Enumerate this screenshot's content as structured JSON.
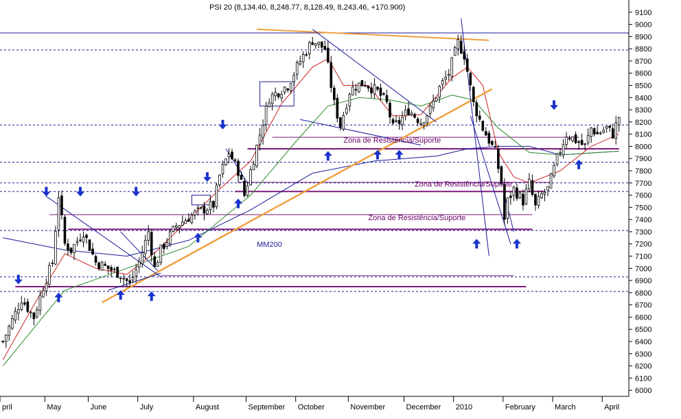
{
  "chart_data": {
    "type": "candlestick",
    "title": "PSI 20 (8,134.40, 8,248.77, 8,128.49, 8,243.46, +170.900)",
    "ylim": [
      5950,
      9200
    ],
    "y_ticks": [
      6000,
      6100,
      6200,
      6300,
      6400,
      6500,
      6600,
      6700,
      6800,
      6900,
      7000,
      7100,
      7200,
      7300,
      7400,
      7500,
      7600,
      7700,
      7800,
      7900,
      8000,
      8100,
      8200,
      8300,
      8400,
      8500,
      8600,
      8700,
      8800,
      8900,
      9000,
      9100
    ],
    "x_labels": [
      "pril",
      "May",
      "June",
      "July",
      "August",
      "September",
      "October",
      "November",
      "December",
      "2010",
      "February",
      "March",
      "April"
    ],
    "x_label_index": [
      0,
      14,
      28,
      44,
      62,
      79,
      95,
      112,
      130,
      146,
      162,
      178,
      194
    ],
    "n_bars": 200,
    "price_path": [
      [
        0,
        6400
      ],
      [
        6,
        6750
      ],
      [
        10,
        6600
      ],
      [
        13,
        6850
      ],
      [
        16,
        7050
      ],
      [
        18,
        7600
      ],
      [
        20,
        7200
      ],
      [
        22,
        7150
      ],
      [
        26,
        7300
      ],
      [
        30,
        7050
      ],
      [
        34,
        7000
      ],
      [
        38,
        6950
      ],
      [
        41,
        6870
      ],
      [
        44,
        7050
      ],
      [
        47,
        7300
      ],
      [
        49,
        7000
      ],
      [
        51,
        7150
      ],
      [
        56,
        7350
      ],
      [
        62,
        7450
      ],
      [
        68,
        7520
      ],
      [
        70,
        7760
      ],
      [
        73,
        7950
      ],
      [
        76,
        7800
      ],
      [
        78,
        7600
      ],
      [
        80,
        7800
      ],
      [
        83,
        8100
      ],
      [
        86,
        8400
      ],
      [
        89,
        8450
      ],
      [
        92,
        8500
      ],
      [
        96,
        8700
      ],
      [
        100,
        8870
      ],
      [
        104,
        8800
      ],
      [
        107,
        8350
      ],
      [
        109,
        8170
      ],
      [
        112,
        8450
      ],
      [
        114,
        8500
      ],
      [
        117,
        8520
      ],
      [
        119,
        8480
      ],
      [
        121,
        8450
      ],
      [
        124,
        8350
      ],
      [
        126,
        8150
      ],
      [
        128,
        8200
      ],
      [
        131,
        8300
      ],
      [
        133,
        8250
      ],
      [
        135,
        8200
      ],
      [
        138,
        8300
      ],
      [
        141,
        8480
      ],
      [
        144,
        8600
      ],
      [
        147,
        8850
      ],
      [
        149,
        8750
      ],
      [
        152,
        8350
      ],
      [
        155,
        8150
      ],
      [
        157,
        8050
      ],
      [
        159,
        7950
      ],
      [
        161,
        7700
      ],
      [
        162,
        7400
      ],
      [
        163,
        7550
      ],
      [
        165,
        7650
      ],
      [
        168,
        7550
      ],
      [
        170,
        7700
      ],
      [
        172,
        7500
      ],
      [
        174,
        7600
      ],
      [
        176,
        7650
      ],
      [
        179,
        7900
      ],
      [
        182,
        8100
      ],
      [
        185,
        8050
      ],
      [
        188,
        8000
      ],
      [
        190,
        8150
      ],
      [
        192,
        8100
      ],
      [
        195,
        8150
      ],
      [
        197,
        8100
      ],
      [
        199,
        8243
      ]
    ],
    "series": [
      {
        "name": "MM200",
        "color": "#1a1a9a",
        "points": [
          [
            0,
            7250
          ],
          [
            20,
            7150
          ],
          [
            40,
            7100
          ],
          [
            60,
            7230
          ],
          [
            80,
            7480
          ],
          [
            100,
            7780
          ],
          [
            120,
            7880
          ],
          [
            140,
            7920
          ],
          [
            150,
            7980
          ],
          [
            160,
            8000
          ],
          [
            170,
            8000
          ],
          [
            180,
            7930
          ],
          [
            199,
            7960
          ]
        ]
      },
      {
        "color": "#2a8a2a",
        "points": [
          [
            0,
            6200
          ],
          [
            20,
            6820
          ],
          [
            40,
            7000
          ],
          [
            60,
            7180
          ],
          [
            80,
            7600
          ],
          [
            95,
            8050
          ],
          [
            105,
            8330
          ],
          [
            115,
            8400
          ],
          [
            125,
            8380
          ],
          [
            135,
            8330
          ],
          [
            145,
            8420
          ],
          [
            152,
            8380
          ],
          [
            160,
            8150
          ],
          [
            170,
            7950
          ],
          [
            180,
            7930
          ],
          [
            199,
            7960
          ]
        ]
      },
      {
        "color": "#cc2222",
        "points": [
          [
            0,
            6250
          ],
          [
            10,
            6700
          ],
          [
            20,
            7120
          ],
          [
            30,
            7000
          ],
          [
            40,
            6950
          ],
          [
            50,
            7150
          ],
          [
            60,
            7400
          ],
          [
            70,
            7650
          ],
          [
            80,
            7880
          ],
          [
            90,
            8350
          ],
          [
            100,
            8650
          ],
          [
            105,
            8720
          ],
          [
            110,
            8500
          ],
          [
            118,
            8500
          ],
          [
            126,
            8250
          ],
          [
            135,
            8260
          ],
          [
            145,
            8560
          ],
          [
            150,
            8650
          ],
          [
            155,
            8500
          ],
          [
            160,
            7950
          ],
          [
            165,
            7750
          ],
          [
            170,
            7700
          ],
          [
            180,
            7800
          ],
          [
            190,
            8000
          ],
          [
            199,
            8100
          ]
        ]
      }
    ],
    "horizontal_levels": [
      {
        "value": 8930,
        "style": "solid",
        "color": "#1a1a9a"
      },
      {
        "value": 8790,
        "style": "dashed",
        "color": "#1a1a9a"
      },
      {
        "value": 8175,
        "style": "dashed",
        "color": "#1a1a9a"
      },
      {
        "value": 8075,
        "style": "solid",
        "color": "#7a1a7a",
        "x": [
          87,
          186
        ]
      },
      {
        "value": 7980,
        "style": "solid",
        "color": "#7a1a7a",
        "x": [
          79,
          199
        ],
        "width": 2
      },
      {
        "value": 7870,
        "style": "dashed",
        "color": "#1a1a9a"
      },
      {
        "value": 7700,
        "style": "dashed",
        "color": "#1a1a9a"
      },
      {
        "value": 7705,
        "style": "solid",
        "color": "#7a1a7a",
        "x": [
          76,
          177
        ]
      },
      {
        "value": 7630,
        "style": "dashed",
        "color": "#1a1a9a"
      },
      {
        "value": 7630,
        "style": "solid",
        "color": "#7a1a7a",
        "x": [
          75,
          175
        ],
        "width": 2
      },
      {
        "value": 7440,
        "style": "solid",
        "color": "#7a1a7a",
        "x": [
          15,
          171
        ]
      },
      {
        "value": 7320,
        "style": "solid",
        "color": "#7a1a7a",
        "x": [
          21,
          171
        ],
        "width": 2
      },
      {
        "value": 7310,
        "style": "dashed",
        "color": "#1a1a9a"
      },
      {
        "value": 6940,
        "style": "solid",
        "color": "#7a1a7a",
        "x": [
          51,
          165
        ]
      },
      {
        "value": 6930,
        "style": "dashed",
        "color": "#1a1a9a"
      },
      {
        "value": 6850,
        "style": "solid",
        "color": "#7a1a7a",
        "x": [
          4,
          169
        ],
        "width": 2
      },
      {
        "value": 6810,
        "style": "dashed",
        "color": "#1a1a9a"
      }
    ],
    "trendlines": [
      {
        "color": "#f0a040",
        "width": 2.5,
        "points": [
          [
            32,
            6720
          ],
          [
            158,
            8470
          ]
        ]
      },
      {
        "color": "#f0a040",
        "width": 2,
        "points": [
          [
            82,
            8960
          ],
          [
            157,
            8870
          ]
        ]
      },
      {
        "color": "#1a1a9a",
        "width": 1,
        "points": [
          [
            100,
            8960
          ],
          [
            140,
            8200
          ]
        ]
      },
      {
        "color": "#1a1a9a",
        "width": 1,
        "points": [
          [
            96,
            8220
          ],
          [
            135,
            8010
          ]
        ]
      },
      {
        "color": "#1a1a9a",
        "width": 1,
        "points": [
          [
            14,
            7590
          ],
          [
            51,
            6930
          ]
        ]
      },
      {
        "color": "#1a1a9a",
        "width": 1,
        "points": [
          [
            38,
            7300
          ],
          [
            50,
            6980
          ]
        ]
      },
      {
        "color": "#1a1a9a",
        "width": 1,
        "points": [
          [
            72,
            7980
          ],
          [
            79,
            7700
          ]
        ]
      },
      {
        "color": "#1a1a9a",
        "width": 1,
        "points": [
          [
            34,
            6820
          ],
          [
            51,
            6960
          ]
        ]
      },
      {
        "color": "#1a1a9a",
        "width": 1,
        "points": [
          [
            148,
            9050
          ],
          [
            157,
            7100
          ]
        ]
      },
      {
        "color": "#1a1a9a",
        "width": 1,
        "points": [
          [
            151,
            8250
          ],
          [
            164,
            7200
          ]
        ]
      },
      {
        "color": "#1a1a9a",
        "width": 1,
        "points": [
          [
            162,
            7600
          ],
          [
            165,
            7300
          ]
        ]
      }
    ],
    "boxes": [
      {
        "color": "#1a1a9a",
        "x": [
          83,
          94
        ],
        "y": [
          8330,
          8530
        ]
      },
      {
        "color": "#1a1a9a",
        "x": [
          61,
          67
        ],
        "y": [
          7520,
          7600
        ]
      }
    ],
    "arrows_down": [
      [
        5,
        6880
      ],
      [
        14,
        7600
      ],
      [
        25,
        7600
      ],
      [
        43,
        7600
      ],
      [
        71,
        8150
      ],
      [
        66,
        7720
      ],
      [
        178,
        8310
      ]
    ],
    "arrows_up": [
      [
        18,
        6790
      ],
      [
        38,
        6810
      ],
      [
        48,
        6800
      ],
      [
        63,
        7280
      ],
      [
        76,
        7560
      ],
      [
        105,
        7950
      ],
      [
        121,
        7960
      ],
      [
        128,
        7960
      ],
      [
        153,
        7230
      ],
      [
        166,
        7230
      ],
      [
        186,
        7880
      ]
    ],
    "annotations": [
      {
        "text": "Zona de Resistência/Suporte",
        "x": 110,
        "y": 8030,
        "cls": "zone"
      },
      {
        "text": "Zona de Resistência/Suporte",
        "x": 133,
        "y": 7670,
        "cls": "zone"
      },
      {
        "text": "Zona de Resistência/Suporte",
        "x": 118,
        "y": 7395,
        "cls": "zone"
      },
      {
        "text": "MM200",
        "x": 82,
        "y": 7175,
        "cls": "mmlabel"
      }
    ],
    "grid": false,
    "y_axis_side": "right"
  }
}
